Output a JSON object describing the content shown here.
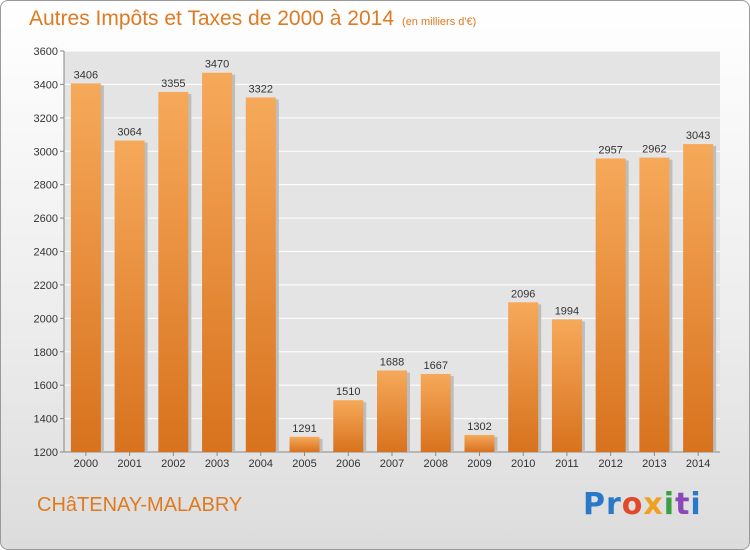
{
  "header": {
    "title": "Autres Impôts et Taxes de 2000 à 2014",
    "unit": "(en milliers d'€)"
  },
  "footer": {
    "city": "CHâTENAY-MALABRY",
    "logo": [
      "Pr",
      "o",
      "x",
      "i",
      "t",
      "i"
    ]
  },
  "colors": {
    "bar_top": "#f6a95a",
    "bar_bottom": "#d8721e",
    "title": "#e07a20"
  },
  "chart_data": {
    "type": "bar",
    "title": "Autres Impôts et Taxes de 2000 à 2014",
    "subtitle": "(en milliers d'€)",
    "xlabel": "",
    "ylabel": "",
    "categories": [
      "2000",
      "2001",
      "2002",
      "2003",
      "2004",
      "2005",
      "2006",
      "2007",
      "2008",
      "2009",
      "2010",
      "2011",
      "2012",
      "2013",
      "2014"
    ],
    "values": [
      3406,
      3064,
      3355,
      3470,
      3322,
      1291,
      1510,
      1688,
      1667,
      1302,
      2096,
      1994,
      2957,
      2962,
      3043
    ],
    "ylim": [
      1200,
      3600
    ],
    "yticks": [
      1200,
      1400,
      1600,
      1800,
      2000,
      2200,
      2400,
      2600,
      2800,
      3000,
      3200,
      3400,
      3600
    ],
    "grid": true,
    "legend": "none"
  }
}
